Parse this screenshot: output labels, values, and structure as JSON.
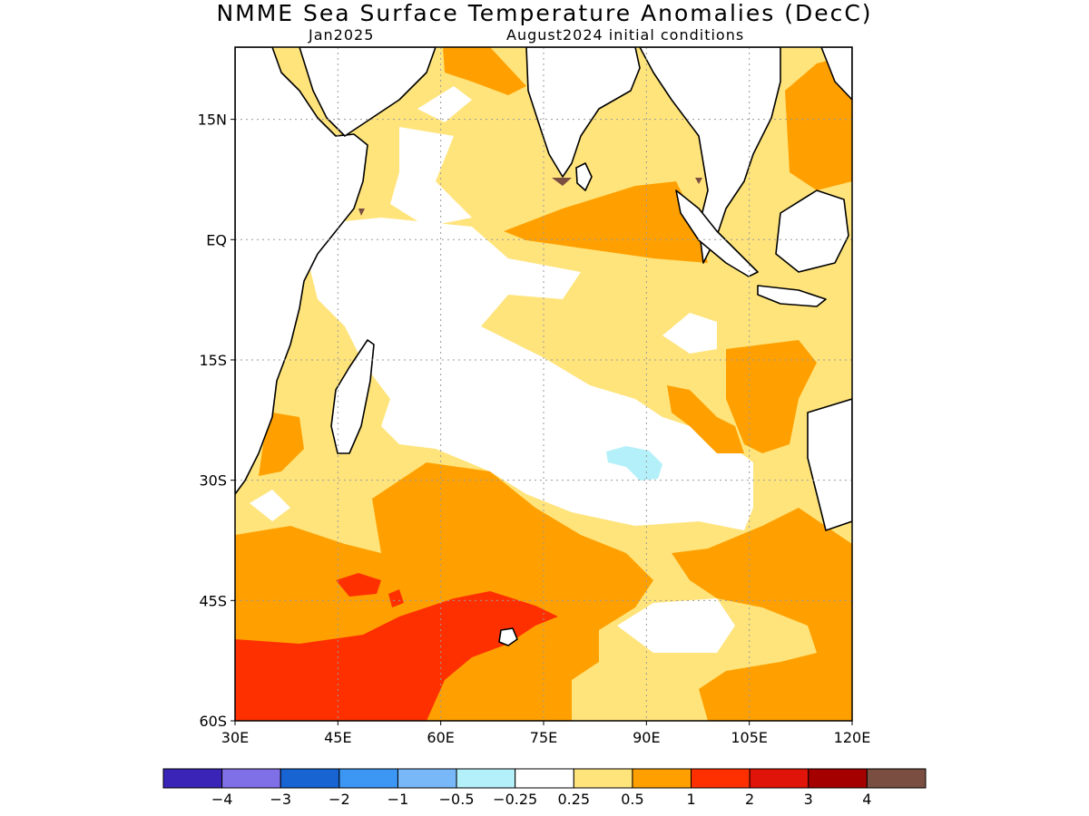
{
  "title": "NMME Sea Surface Temperature Anomalies (DecC)",
  "subtitle_left": "Jan2025",
  "subtitle_right": "August2024 initial conditions",
  "map": {
    "region": "Indian Ocean",
    "lon_range": [
      30,
      120
    ],
    "lat_range": [
      -60,
      24
    ],
    "lat_ticks": [
      "15N",
      "EQ",
      "15S",
      "30S",
      "45S",
      "60S"
    ],
    "lon_ticks": [
      "30E",
      "45E",
      "60E",
      "75E",
      "90E",
      "105E",
      "120E"
    ],
    "grid": true
  },
  "colorbar": {
    "colors": [
      "#3a24b8",
      "#8070e8",
      "#1764d2",
      "#3c96f4",
      "#78b8f8",
      "#b4f0fa",
      "#ffffff",
      "#ffe47c",
      "#ffa000",
      "#ff3000",
      "#e01408",
      "#a50000",
      "#7a4e40"
    ],
    "labels": [
      "-4",
      "-3",
      "-2",
      "-1",
      "-0.5",
      "-0.25",
      "0.25",
      "0.5",
      "1",
      "2",
      "3",
      "4"
    ]
  }
}
